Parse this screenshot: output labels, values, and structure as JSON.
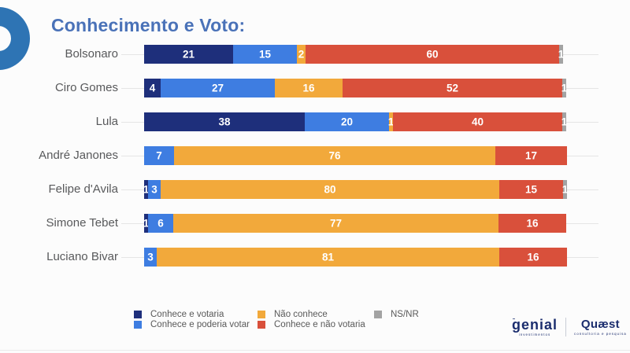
{
  "title": "Conhecimento e Voto:",
  "colors": {
    "navy": "#1E2F7B",
    "blue": "#3E7DE1",
    "orange": "#F2A93B",
    "red": "#D9503B",
    "gray": "#A3A3A3",
    "title_blue": "#4A72B8",
    "label_gray": "#58595B",
    "track_gray": "#E5E5E5",
    "brand_ring_blue": "#2E74B4",
    "logo_navy": "#1B2D6E"
  },
  "chart_data": {
    "type": "bar",
    "orientation": "horizontal-stacked",
    "title": "Conhecimento e Voto:",
    "xlabel": "",
    "ylabel": "",
    "xlim": [
      0,
      100
    ],
    "grid": false,
    "value_labels": true,
    "legend_position": "bottom",
    "categories": [
      "Bolsonaro",
      "Ciro Gomes",
      "Lula",
      "André Janones",
      "Felipe d'Avila",
      "Simone Tebet",
      "Luciano Bivar"
    ],
    "series": [
      {
        "name": "Conhece e votaria",
        "color_key": "navy",
        "values": [
          21,
          4,
          38,
          0,
          1,
          1,
          0
        ]
      },
      {
        "name": "Conhece e poderia votar",
        "color_key": "blue",
        "values": [
          15,
          27,
          20,
          7,
          3,
          6,
          3
        ]
      },
      {
        "name": "Não conhece",
        "color_key": "orange",
        "values": [
          2,
          16,
          1,
          76,
          80,
          77,
          81
        ]
      },
      {
        "name": "Conhece e não votaria",
        "color_key": "red",
        "values": [
          60,
          52,
          40,
          17,
          15,
          16,
          16
        ]
      },
      {
        "name": "NS/NR",
        "color_key": "gray",
        "values": [
          1,
          1,
          1,
          0,
          1,
          0,
          0
        ]
      }
    ],
    "legend_columns": [
      [
        0,
        1
      ],
      [
        2,
        3
      ],
      [
        4
      ]
    ]
  },
  "footer": {
    "genial_name": "genial",
    "genial_sub": "investimentos",
    "quaest_name": "Quæst",
    "quaest_sub": "consultoria e pesquisa"
  }
}
